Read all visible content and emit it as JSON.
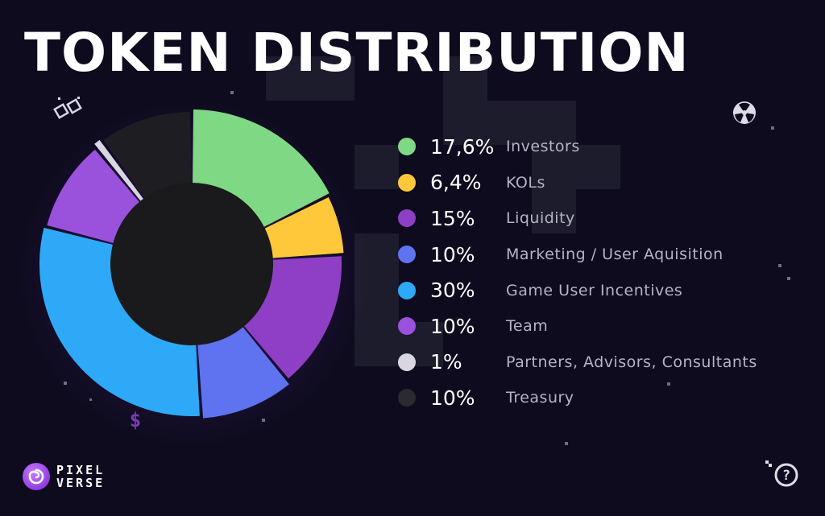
{
  "title": "TOKEN DISTRIBUTION",
  "logo": {
    "line1": "PIXEL",
    "line2": "VERSE"
  },
  "chart_data": {
    "type": "pie",
    "title": "TOKEN DISTRIBUTION",
    "donut": true,
    "legend_position": "right",
    "slices": [
      {
        "label": "Investors",
        "value": 17.6,
        "display": "17,6%",
        "color": "#7fd883"
      },
      {
        "label": "KOLs",
        "value": 6.4,
        "display": "6,4%",
        "color": "#ffc83a"
      },
      {
        "label": "Liquidity",
        "value": 15,
        "display": "15%",
        "color": "#8e3fc6"
      },
      {
        "label": "Marketing / User Aquisition",
        "value": 10,
        "display": "10%",
        "color": "#5f73f0"
      },
      {
        "label": "Game User Incentives",
        "value": 30,
        "display": "30%",
        "color": "#2ea9f8"
      },
      {
        "label": "Team",
        "value": 10,
        "display": "10%",
        "color": "#9a52dc"
      },
      {
        "label": "Partners, Advisors, Consultants",
        "value": 1,
        "display": "1%",
        "color": "#d9d6e2"
      },
      {
        "label": "Treasury",
        "value": 10,
        "display": "10%",
        "color": "#1e1e22"
      }
    ]
  },
  "icons": {
    "logo": "pixelverse-logo-icon",
    "help": "help-icon",
    "radiation": "radiation-icon",
    "dollar": "dollar-icon",
    "links": "chain-link-icon"
  }
}
